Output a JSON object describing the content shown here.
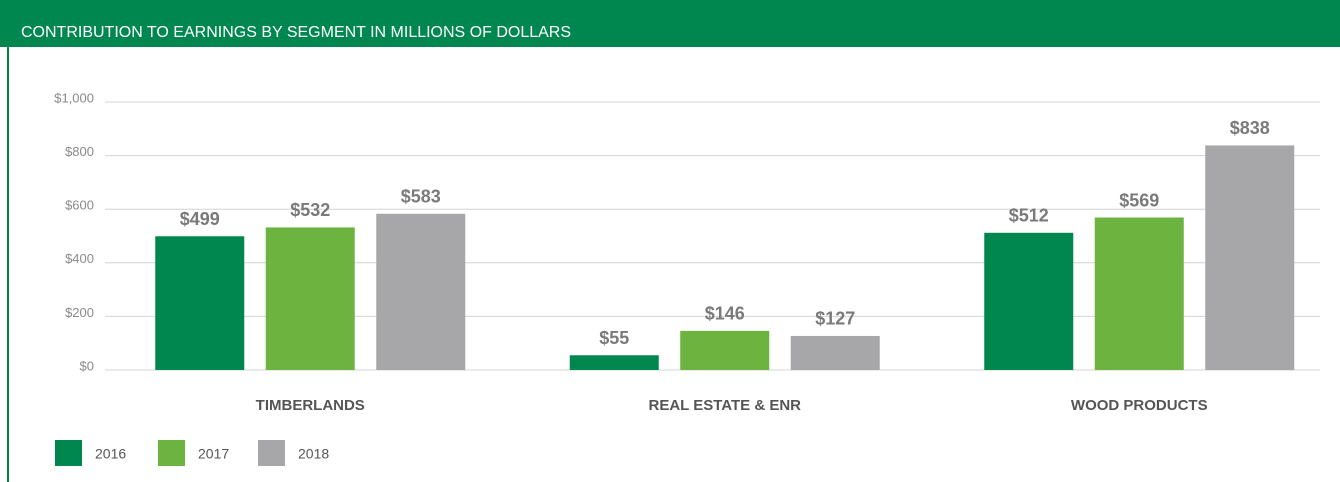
{
  "chart_data": {
    "type": "bar",
    "title": "CONTRIBUTION TO EARNINGS BY SEGMENT IN MILLIONS OF DOLLARS",
    "categories": [
      "TIMBERLANDS",
      "REAL ESTATE & ENR",
      "WOOD PRODUCTS"
    ],
    "series": [
      {
        "name": "2016",
        "color": "#00874f",
        "values": [
          499,
          55,
          512
        ],
        "value_labels": [
          "$499",
          "$55",
          "$512"
        ]
      },
      {
        "name": "2017",
        "color": "#6db33f",
        "values": [
          532,
          146,
          569
        ],
        "value_labels": [
          "$532",
          "$146",
          "$569"
        ]
      },
      {
        "name": "2018",
        "color": "#a7a7a9",
        "values": [
          583,
          127,
          838
        ],
        "value_labels": [
          "$583",
          "$127",
          "$838"
        ]
      }
    ],
    "ylim": [
      0,
      1000
    ],
    "yticks": [
      {
        "value": 0,
        "label": "$0"
      },
      {
        "value": 200,
        "label": "$200"
      },
      {
        "value": 400,
        "label": "$400"
      },
      {
        "value": 600,
        "label": "$600"
      },
      {
        "value": 800,
        "label": "$800"
      },
      {
        "value": 1000,
        "label": "$1,000"
      }
    ],
    "grid": true,
    "legend": "bottom-left"
  }
}
